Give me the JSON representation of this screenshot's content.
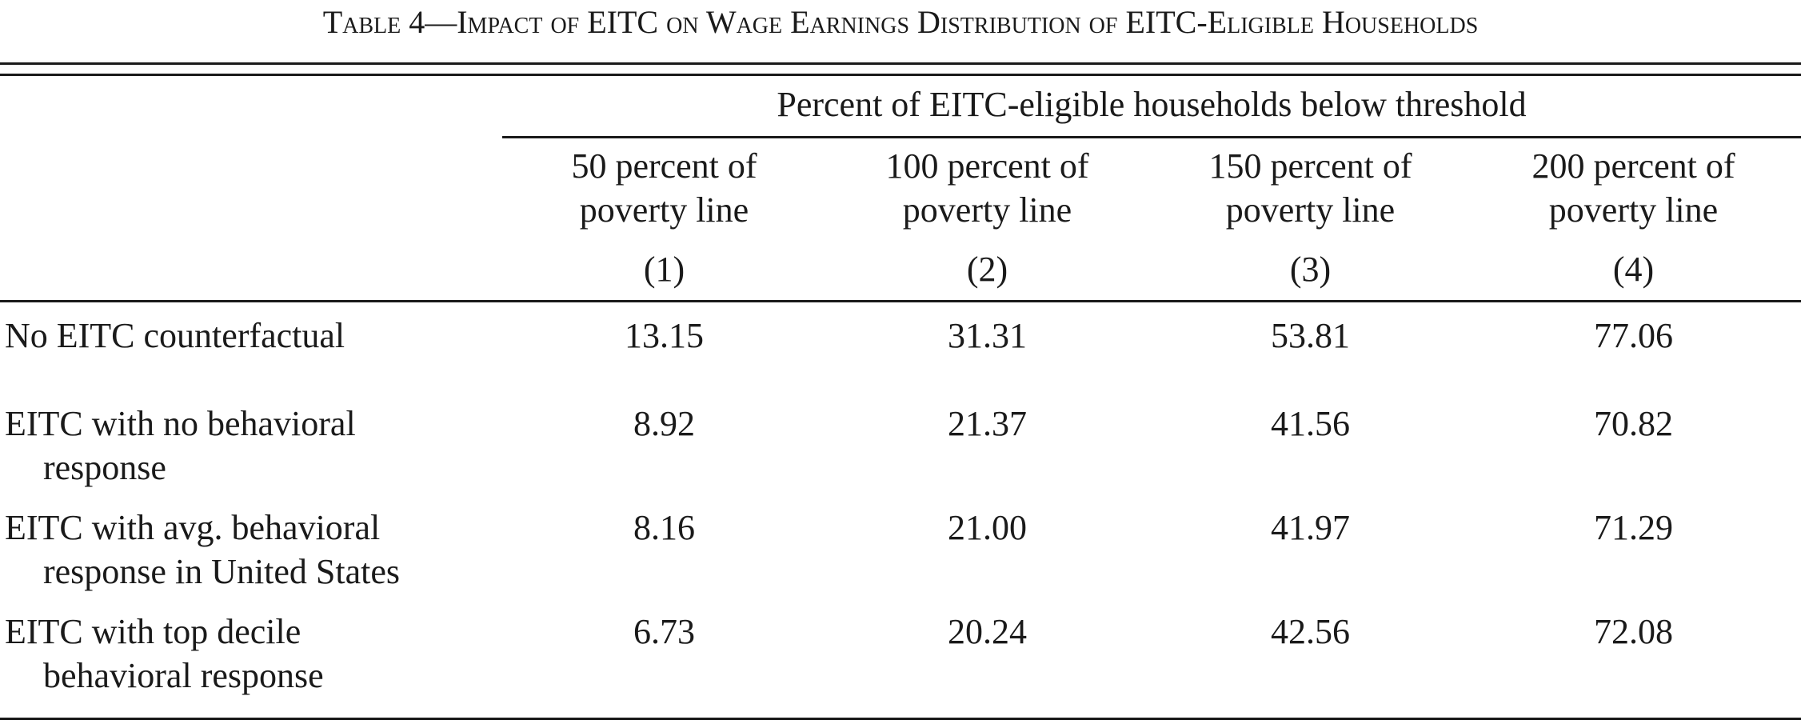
{
  "table": {
    "title_prefix": "Table 4",
    "title_dash": "—",
    "title_main": "Impact of EITC on Wage Earnings Distribution of EITC-Eligible Households",
    "spanner": "Percent of EITC-eligible households below threshold",
    "columns": [
      {
        "line1": "50 percent of",
        "line2": "poverty line",
        "number": "(1)"
      },
      {
        "line1": "100 percent of",
        "line2": "poverty line",
        "number": "(2)"
      },
      {
        "line1": "150 percent of",
        "line2": "poverty line",
        "number": "(3)"
      },
      {
        "line1": "200 percent of",
        "line2": "poverty line",
        "number": "(4)"
      }
    ],
    "rows": [
      {
        "line1": "No EITC counterfactual",
        "line2": "",
        "values": [
          "13.15",
          "31.31",
          "53.81",
          "77.06"
        ]
      },
      {
        "line1": "EITC with no behavioral",
        "line2": "response",
        "values": [
          "8.92",
          "21.37",
          "41.56",
          "70.82"
        ]
      },
      {
        "line1": "EITC with avg. behavioral",
        "line2": "response in United States",
        "values": [
          "8.16",
          "21.00",
          "41.97",
          "71.29"
        ]
      },
      {
        "line1": "EITC with top decile",
        "line2": "behavioral response",
        "values": [
          "6.73",
          "20.24",
          "42.56",
          "72.08"
        ]
      }
    ]
  }
}
